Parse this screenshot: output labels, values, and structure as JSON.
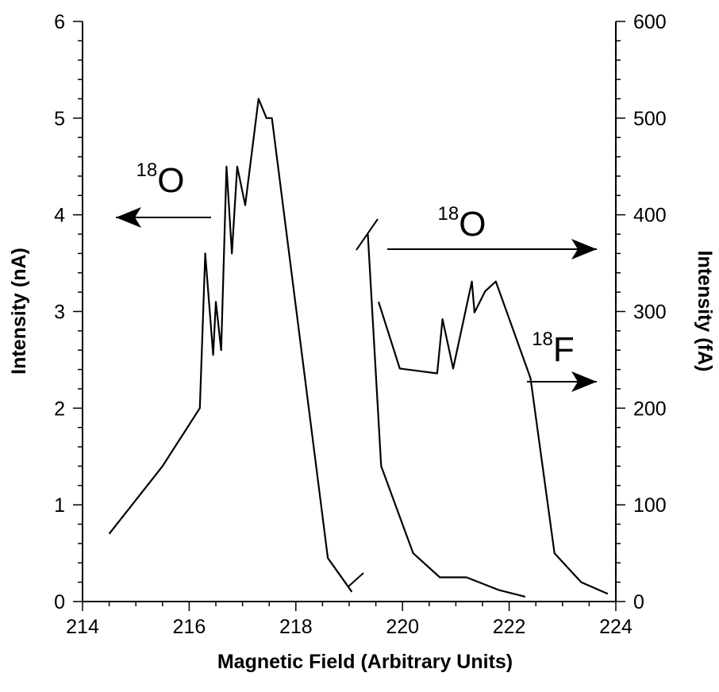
{
  "chart_data": {
    "type": "line",
    "xlabel": "Magnetic Field (Arbitrary Units)",
    "ylabel_left": "Intensity (nA)",
    "ylabel_right": "Intensity (fA)",
    "xlim": [
      214,
      224
    ],
    "ylim_left": [
      0,
      6
    ],
    "ylim_right": [
      0,
      600
    ],
    "x_ticks": [
      "214",
      "216",
      "218",
      "220",
      "222",
      "224"
    ],
    "y_ticks_left": [
      "0",
      "1",
      "2",
      "3",
      "4",
      "5",
      "6"
    ],
    "y_ticks_right": [
      "0",
      "100",
      "200",
      "300",
      "400",
      "500",
      "600"
    ],
    "grid": false,
    "series": [
      {
        "axis": "left",
        "points": [
          [
            214.5,
            0.7
          ],
          [
            215.0,
            1.05
          ],
          [
            215.5,
            1.4
          ],
          [
            216.2,
            2.0
          ],
          [
            216.3,
            3.6
          ],
          [
            216.45,
            2.55
          ],
          [
            216.5,
            3.1
          ],
          [
            216.6,
            2.6
          ],
          [
            216.7,
            4.5
          ],
          [
            216.8,
            3.6
          ],
          [
            216.9,
            4.5
          ],
          [
            217.05,
            4.1
          ],
          [
            217.3,
            5.2
          ],
          [
            217.45,
            5.0
          ],
          [
            217.55,
            5.0
          ],
          [
            218.6,
            0.45
          ],
          [
            219.05,
            0.1
          ]
        ]
      },
      {
        "axis": "right",
        "points": [
          [
            219.35,
            380
          ],
          [
            219.6,
            140
          ],
          [
            220.2,
            50
          ],
          [
            220.7,
            25
          ],
          [
            221.2,
            25
          ],
          [
            221.8,
            12
          ],
          [
            222.3,
            5
          ]
        ]
      },
      {
        "axis": "right",
        "points": [
          [
            219.55,
            310
          ],
          [
            219.95,
            241
          ],
          [
            220.65,
            236
          ],
          [
            220.75,
            292
          ],
          [
            220.95,
            241
          ],
          [
            221.3,
            331
          ],
          [
            221.35,
            299
          ],
          [
            221.55,
            321
          ],
          [
            221.75,
            331
          ],
          [
            222.4,
            231
          ],
          [
            222.85,
            50
          ],
          [
            223.35,
            20
          ],
          [
            223.85,
            8
          ]
        ]
      }
    ],
    "annotations": [
      {
        "sup": "18",
        "main": "O",
        "arrow": "left"
      },
      {
        "sup": "18",
        "main": "O",
        "arrow": "right"
      },
      {
        "sup": "18",
        "main": "F",
        "arrow": "right"
      }
    ]
  }
}
